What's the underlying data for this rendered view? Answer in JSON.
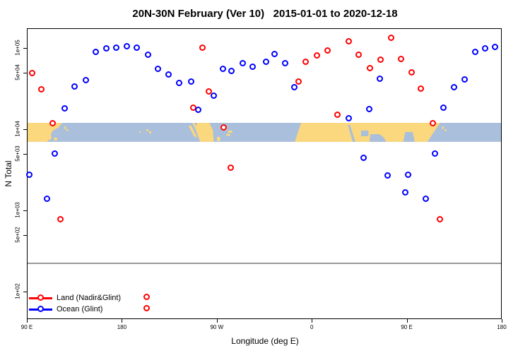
{
  "title": "20N-30N February (Ver 10)   2015-01-01 to 2020-12-18",
  "legend": {
    "items": [
      "Land (Nadir&Glint)",
      "Ocean (Glint)"
    ]
  },
  "chart_data": {
    "type": "scatter",
    "title": "20N-30N February (Ver 10)   2015-01-01 to 2020-12-18",
    "xlabel": "Longitude (deg E)",
    "ylabel": "N Total",
    "x_axis": {
      "note": "longitude axis starts at 90E and wraps eastward around the globe to 180",
      "range_deg": [
        90,
        540
      ],
      "ticks": [
        {
          "lon": 90,
          "label": "90 E"
        },
        {
          "lon": 180,
          "label": "180"
        },
        {
          "lon": 270,
          "label": "90 W"
        },
        {
          "lon": 360,
          "label": "0"
        },
        {
          "lon": 450,
          "label": "90 E"
        },
        {
          "lon": 540,
          "label": "180"
        }
      ]
    },
    "y_axis": {
      "scale": "log",
      "ticks": [
        {
          "v": 100000,
          "label": "1e+05"
        },
        {
          "v": 50000,
          "label": "5e+04"
        },
        {
          "v": 10000,
          "label": "1e+04"
        },
        {
          "v": 5000,
          "label": "5e+03"
        },
        {
          "v": 1000,
          "label": "1e+03"
        },
        {
          "v": 500,
          "label": "5e+02"
        },
        {
          "v": 100,
          "label": "1e+02"
        }
      ]
    },
    "ref_line": {
      "value": 230,
      "color": "#999999"
    },
    "map_band": {
      "value_top": 12000,
      "value_bottom": 7000,
      "ocean_color": "#A9BFDB",
      "land_color": "#FBD77D"
    },
    "series": [
      {
        "name": "Land (Nadir&Glint)",
        "color": "#FF0000",
        "points": [
          [
            95.6,
            49000
          ],
          [
            103.9,
            31000
          ],
          [
            115.1,
            11800
          ],
          [
            121.9,
            780
          ],
          [
            256.5,
            100000
          ],
          [
            248.2,
            18200
          ],
          [
            262.6,
            29000
          ],
          [
            276.6,
            10400
          ],
          [
            283.3,
            3360
          ],
          [
            347.6,
            38700
          ],
          [
            354.7,
            67000
          ],
          [
            365.4,
            80000
          ],
          [
            375.4,
            93500
          ],
          [
            384.8,
            14900
          ],
          [
            395.6,
            120000
          ],
          [
            405.0,
            82500
          ],
          [
            415.4,
            56500
          ],
          [
            425.7,
            71500
          ],
          [
            435.5,
            132000
          ],
          [
            444.7,
            72500
          ],
          [
            455.2,
            50000
          ],
          [
            463.7,
            31500
          ],
          [
            475.1,
            11800
          ],
          [
            482.0,
            780
          ],
          [
            203.8,
            85
          ],
          [
            203.8,
            62
          ]
        ]
      },
      {
        "name": "Ocean (Glint)",
        "color": "#0000FF",
        "points": [
          [
            92.5,
            2750
          ],
          [
            109.2,
            1380
          ],
          [
            117.0,
            4970
          ],
          [
            126.4,
            18100
          ],
          [
            135.7,
            33300
          ],
          [
            146.5,
            39700
          ],
          [
            155.4,
            89000
          ],
          [
            165.9,
            98000
          ],
          [
            175.2,
            101000
          ],
          [
            184.9,
            105000
          ],
          [
            194.2,
            101000
          ],
          [
            205.0,
            83000
          ],
          [
            214.6,
            55000
          ],
          [
            224.4,
            47300
          ],
          [
            234.6,
            37300
          ],
          [
            246.0,
            38400
          ],
          [
            252.7,
            17300
          ],
          [
            267.2,
            26000
          ],
          [
            276.2,
            55500
          ],
          [
            284.4,
            52000
          ],
          [
            295.1,
            64500
          ],
          [
            304.5,
            58700
          ],
          [
            316.8,
            67000
          ],
          [
            325.3,
            84500
          ],
          [
            335.1,
            64700
          ],
          [
            343.6,
            32600
          ],
          [
            395.4,
            13500
          ],
          [
            409.4,
            4400
          ],
          [
            414.6,
            17600
          ],
          [
            425.0,
            42000
          ],
          [
            432.2,
            2700
          ],
          [
            449.1,
            1660
          ],
          [
            451.4,
            2760
          ],
          [
            468.5,
            1380
          ],
          [
            477.0,
            4970
          ],
          [
            484.9,
            18500
          ],
          [
            495.4,
            33000
          ],
          [
            505.5,
            41000
          ],
          [
            515.2,
            89000
          ],
          [
            524.8,
            98000
          ],
          [
            534.2,
            103000
          ]
        ]
      }
    ]
  }
}
